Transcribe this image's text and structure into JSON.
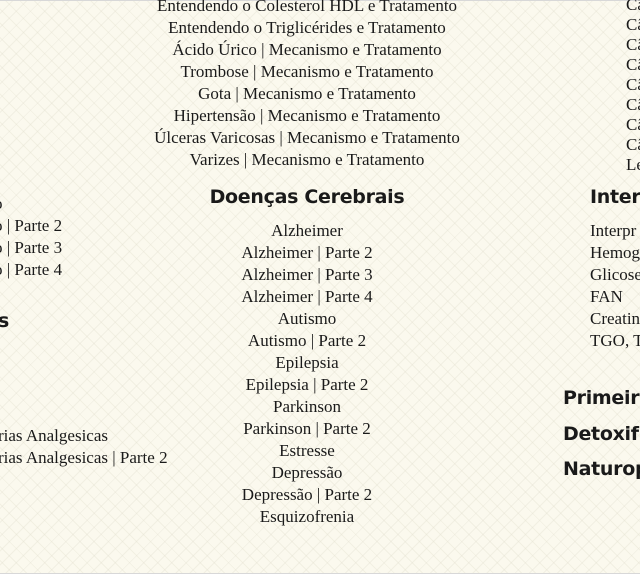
{
  "center_top": [
    "Entendendo o Colesterol HDL e Tratamento",
    "Entendendo o Triglicérides e Tratamento",
    "Ácido Úrico | Mecanismo e Tratamento",
    "Trombose | Mecanismo e Tratamento",
    "Gota | Mecanismo e Tratamento",
    "Hipertensão | Mecanismo e Tratamento",
    "Úlceras Varicosas | Mecanismo e Tratamento",
    "Varizes | Mecanismo e Tratamento"
  ],
  "cerebral": {
    "title": "Doenças Cerebrais",
    "items": [
      "Alzheimer",
      "Alzheimer | Parte 2",
      "Alzheimer | Parte 3",
      "Alzheimer | Parte 4",
      "Autismo",
      "Autismo | Parte 2",
      "Epilepsia",
      "Epilepsia | Parte 2",
      "Parkinson",
      "Parkinson | Parte 2",
      "Estresse",
      "Depressão",
      "Depressão | Parte 2",
      "Esquizofrenia"
    ]
  },
  "left": {
    "items_a": [
      "o",
      "o | Parte 2",
      "o | Parte 3",
      "o | Parte 4"
    ],
    "heading": "s",
    "items_b": [
      "rias Analgesicas",
      "rias Analgesicas | Parte 2"
    ]
  },
  "right": {
    "top_items": [
      "Câ",
      "Câ",
      "Câ",
      "Câ",
      "Câ",
      "Câ",
      "Câ",
      "Câ",
      "Le"
    ],
    "heading": "Inter",
    "items": [
      "Interpr",
      "Hemog",
      "Glicose",
      "FAN",
      "Creatin",
      "TGO, TG"
    ],
    "sections": [
      "Primeir",
      "Detoxifi",
      "Naturop"
    ]
  }
}
